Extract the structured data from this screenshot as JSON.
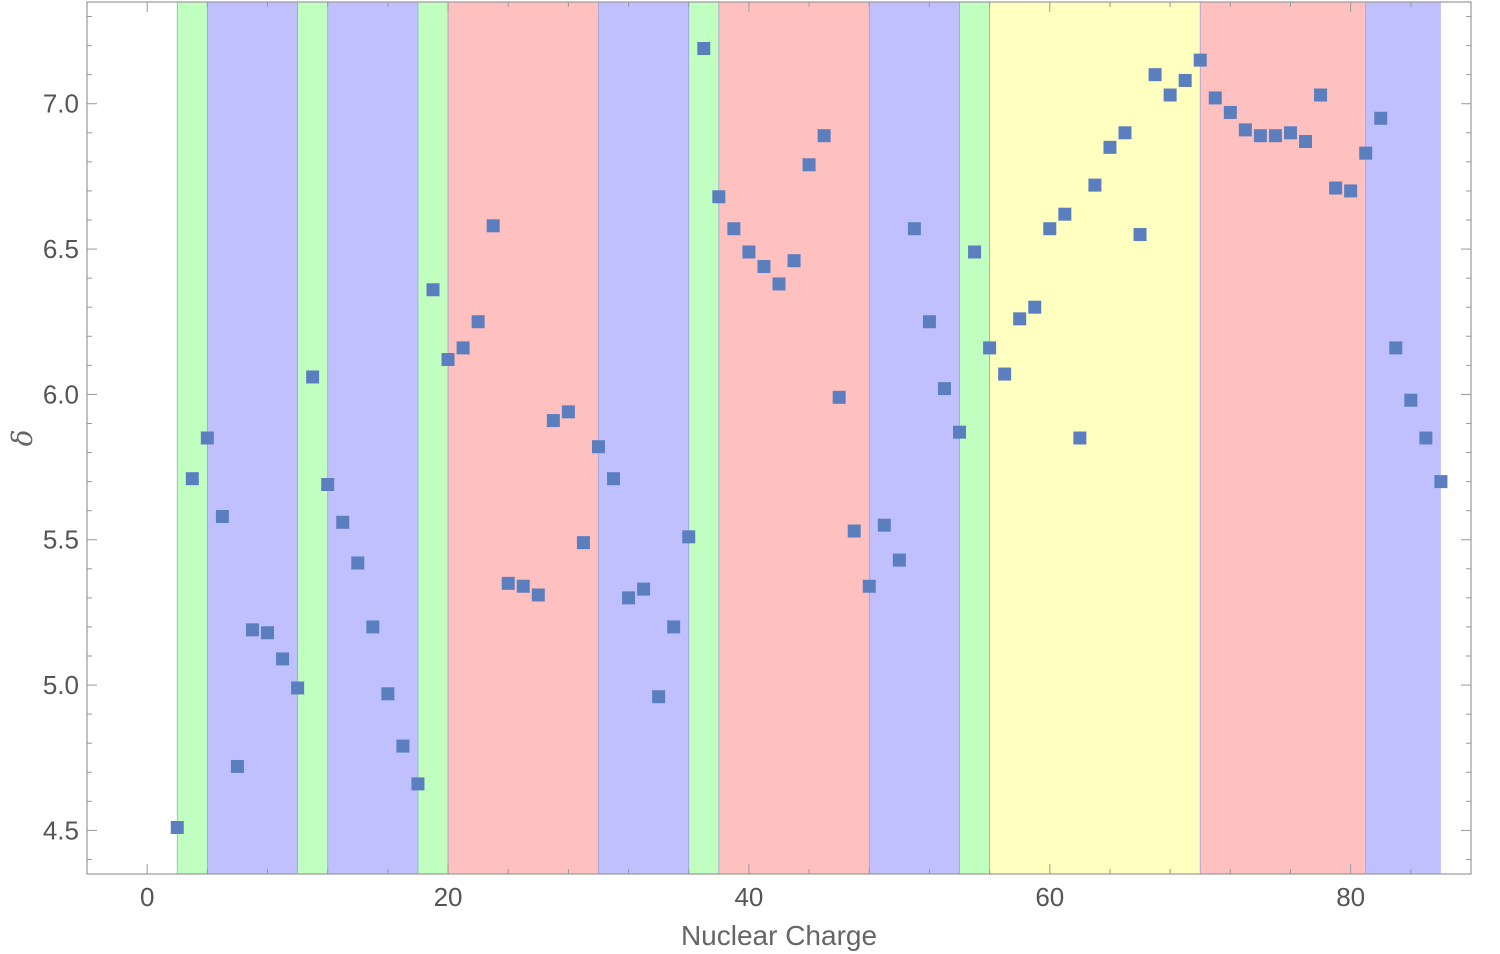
{
  "chart_data": {
    "type": "scatter",
    "xlabel": "Nuclear Charge",
    "ylabel": "δ",
    "xlim": [
      -4,
      88
    ],
    "ylim": [
      4.35,
      7.35
    ],
    "xticks": [
      0,
      20,
      40,
      60,
      80
    ],
    "yticks": [
      4.5,
      5.0,
      5.5,
      6.0,
      6.5,
      7.0
    ],
    "xtick_labels": [
      "0",
      "20",
      "40",
      "60",
      "80"
    ],
    "ytick_labels": [
      "4.5",
      "5.0",
      "5.5",
      "6.0",
      "6.5",
      "7.0"
    ],
    "grid": false,
    "marker": "square",
    "marker_color": "#5b7fbe",
    "bands": [
      {
        "x0": 2,
        "x1": 4,
        "color": "#c0ffc0"
      },
      {
        "x0": 4,
        "x1": 10,
        "color": "#c0c0ff"
      },
      {
        "x0": 10,
        "x1": 12,
        "color": "#c0ffc0"
      },
      {
        "x0": 12,
        "x1": 18,
        "color": "#c0c0ff"
      },
      {
        "x0": 18,
        "x1": 20,
        "color": "#c0ffc0"
      },
      {
        "x0": 20,
        "x1": 30,
        "color": "#ffc0c0"
      },
      {
        "x0": 30,
        "x1": 36,
        "color": "#c0c0ff"
      },
      {
        "x0": 36,
        "x1": 38,
        "color": "#c0ffc0"
      },
      {
        "x0": 38,
        "x1": 48,
        "color": "#ffc0c0"
      },
      {
        "x0": 48,
        "x1": 54,
        "color": "#c0c0ff"
      },
      {
        "x0": 54,
        "x1": 56,
        "color": "#c0ffc0"
      },
      {
        "x0": 56,
        "x1": 70,
        "color": "#ffffc0"
      },
      {
        "x0": 70,
        "x1": 81,
        "color": "#ffc0c0"
      },
      {
        "x0": 81,
        "x1": 86,
        "color": "#c0c0ff"
      }
    ],
    "x": [
      2,
      3,
      4,
      5,
      6,
      7,
      8,
      9,
      10,
      11,
      12,
      13,
      14,
      15,
      16,
      17,
      18,
      19,
      20,
      21,
      22,
      23,
      24,
      25,
      26,
      27,
      28,
      29,
      30,
      31,
      32,
      33,
      34,
      35,
      36,
      37,
      38,
      39,
      40,
      41,
      42,
      43,
      44,
      45,
      46,
      47,
      48,
      49,
      50,
      51,
      52,
      53,
      54,
      55,
      56,
      57,
      58,
      59,
      60,
      61,
      62,
      63,
      64,
      65,
      66,
      67,
      68,
      69,
      70,
      71,
      72,
      73,
      74,
      75,
      76,
      77,
      78,
      79,
      80,
      81,
      82,
      83,
      84,
      85,
      86
    ],
    "y": [
      4.51,
      5.71,
      5.85,
      5.58,
      4.72,
      5.19,
      5.18,
      5.09,
      4.99,
      6.06,
      5.69,
      5.56,
      5.42,
      5.2,
      4.97,
      4.79,
      4.66,
      6.36,
      6.12,
      6.16,
      6.25,
      6.58,
      5.35,
      5.34,
      5.31,
      5.91,
      5.94,
      5.49,
      5.82,
      5.71,
      5.3,
      5.33,
      4.96,
      5.2,
      5.51,
      7.19,
      6.68,
      6.57,
      6.49,
      6.44,
      6.38,
      6.46,
      6.79,
      6.89,
      5.99,
      5.53,
      5.34,
      5.55,
      5.43,
      6.57,
      6.25,
      6.02,
      5.87,
      6.49,
      6.16,
      6.07,
      6.26,
      6.3,
      6.57,
      6.62,
      5.85,
      6.72,
      6.85,
      6.9,
      6.55,
      7.1,
      7.03,
      7.08,
      7.15,
      7.02,
      6.97,
      6.91,
      6.89,
      6.89,
      6.9,
      6.87,
      7.03,
      6.71,
      6.7,
      6.83,
      6.95,
      6.16,
      5.98,
      5.85,
      5.7
    ]
  }
}
